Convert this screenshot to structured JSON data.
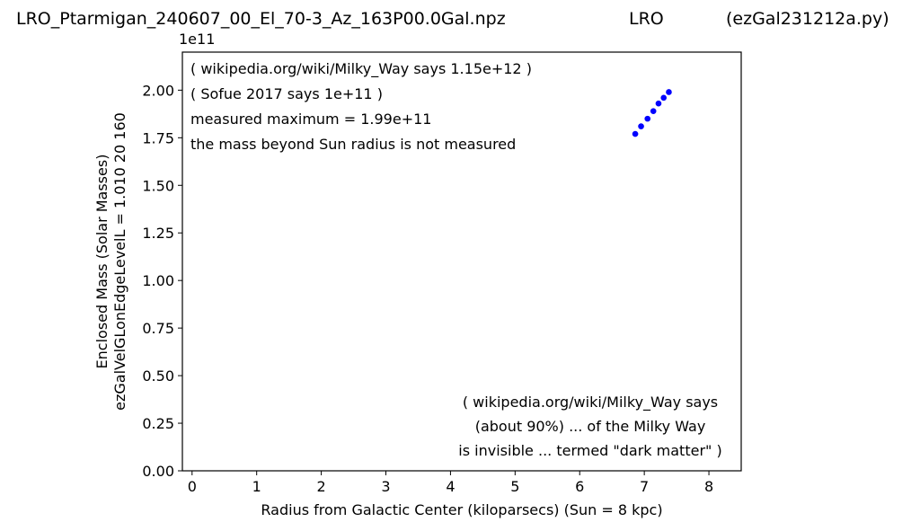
{
  "header": {
    "left": "LRO_Ptarmigan_240607_00_El_70-3_Az_163P00.0Gal.npz",
    "center": "LRO",
    "right": "(ezGal231212a.py)"
  },
  "chart_data": {
    "type": "scatter",
    "xlabel": "Radius from Galactic Center (kiloparsecs)  (Sun = 8 kpc)",
    "ylabel_lines": [
      "Enclosed Mass (Solar Masses)",
      "ezGalVelGLonEdgeLevelL = 1.010  20  160"
    ],
    "y_multiplier": "1e11",
    "xlim": [
      -0.15,
      8.5
    ],
    "ylim": [
      0,
      2.2
    ],
    "xticks": [
      0,
      1,
      2,
      3,
      4,
      5,
      6,
      7,
      8
    ],
    "xtick_labels": [
      "0",
      "1",
      "2",
      "3",
      "4",
      "5",
      "6",
      "7",
      "8"
    ],
    "yticks": [
      0,
      0.25,
      0.5,
      0.75,
      1.0,
      1.25,
      1.5,
      1.75,
      2.0
    ],
    "ytick_labels": [
      "0.00",
      "0.25",
      "0.50",
      "0.75",
      "1.00",
      "1.25",
      "1.50",
      "1.75",
      "2.00"
    ],
    "series": [
      {
        "color": "#0000ff",
        "x": [
          6.86,
          6.95,
          7.05,
          7.14,
          7.22,
          7.3,
          7.38
        ],
        "y": [
          1.77,
          1.81,
          1.85,
          1.89,
          1.93,
          1.96,
          1.99
        ]
      }
    ],
    "annotations_top": [
      "( wikipedia.org/wiki/Milky_Way says 1.15e+12 )",
      "( Sofue 2017 says 1e+11 )",
      "measured maximum = 1.99e+11",
      "the mass beyond Sun radius is not measured"
    ],
    "annotations_bottom": [
      "( wikipedia.org/wiki/Milky_Way says",
      "(about 90%) ... of the Milky Way",
      "is invisible ... termed \"dark matter\" )"
    ],
    "grid": false
  }
}
